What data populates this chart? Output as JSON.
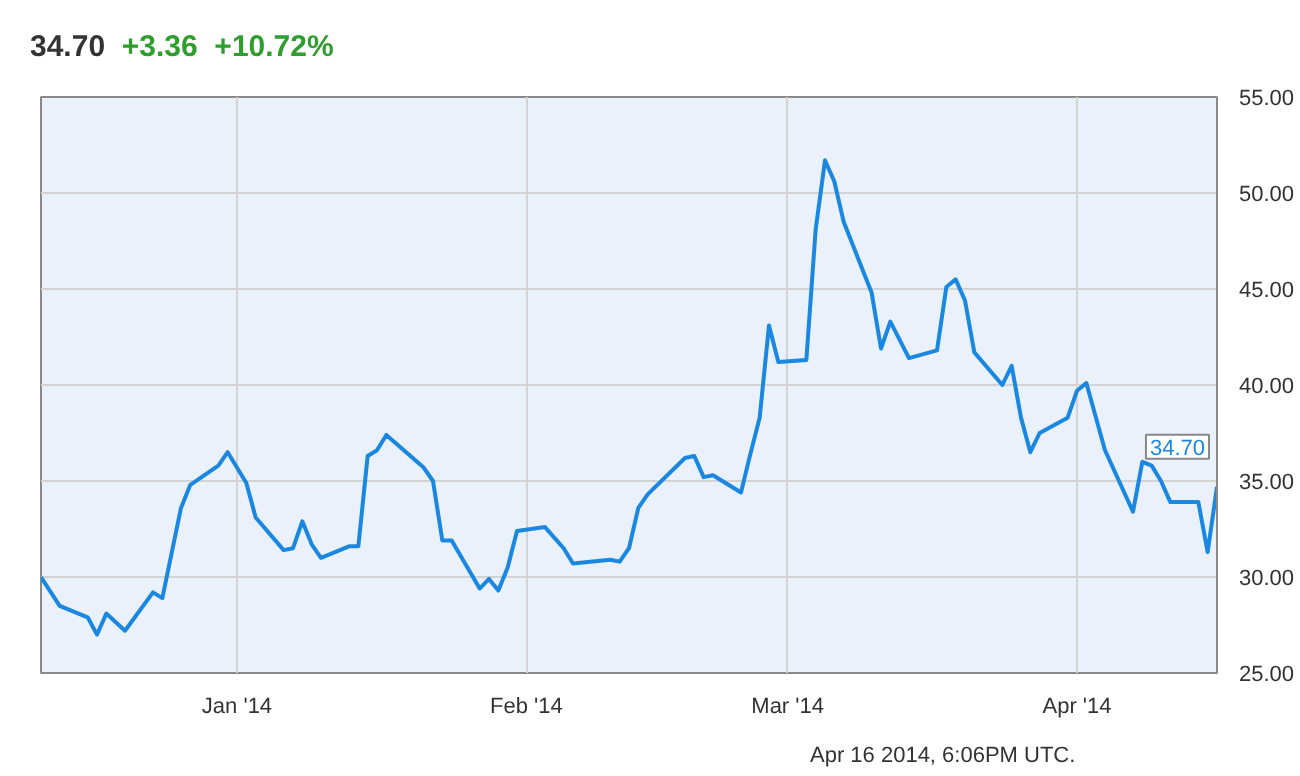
{
  "chart_data": {
    "type": "line",
    "title": "34.70",
    "subtitle": "+3.36  +10.72%",
    "x": [
      "2013-12-11",
      "2013-12-13",
      "2013-12-16",
      "2013-12-17",
      "2013-12-18",
      "2013-12-20",
      "2013-12-23",
      "2013-12-24",
      "2013-12-26",
      "2013-12-27",
      "2013-12-30",
      "2013-12-31",
      "2014-01-02",
      "2014-01-03",
      "2014-01-06",
      "2014-01-07",
      "2014-01-08",
      "2014-01-09",
      "2014-01-10",
      "2014-01-13",
      "2014-01-14",
      "2014-01-15",
      "2014-01-16",
      "2014-01-17",
      "2014-01-21",
      "2014-01-22",
      "2014-01-23",
      "2014-01-24",
      "2014-01-27",
      "2014-01-28",
      "2014-01-29",
      "2014-01-30",
      "2014-01-31",
      "2014-02-03",
      "2014-02-05",
      "2014-02-06",
      "2014-02-10",
      "2014-02-11",
      "2014-02-12",
      "2014-02-13",
      "2014-02-14",
      "2014-02-18",
      "2014-02-19",
      "2014-02-20",
      "2014-02-21",
      "2014-02-24",
      "2014-02-25",
      "2014-02-26",
      "2014-02-27",
      "2014-02-28",
      "2014-03-03",
      "2014-03-04",
      "2014-03-05",
      "2014-03-06",
      "2014-03-07",
      "2014-03-10",
      "2014-03-11",
      "2014-03-12",
      "2014-03-14",
      "2014-03-17",
      "2014-03-18",
      "2014-03-19",
      "2014-03-20",
      "2014-03-21",
      "2014-03-24",
      "2014-03-25",
      "2014-03-26",
      "2014-03-27",
      "2014-03-28",
      "2014-03-31",
      "2014-04-01",
      "2014-04-02",
      "2014-04-04",
      "2014-04-07",
      "2014-04-08",
      "2014-04-09",
      "2014-04-10",
      "2014-04-11",
      "2014-04-14",
      "2014-04-15",
      "2014-04-16"
    ],
    "series": [
      {
        "color": "#1a87e0",
        "values": [
          30.0,
          28.5,
          27.9,
          27.0,
          28.1,
          27.2,
          29.2,
          28.9,
          33.6,
          34.8,
          35.8,
          36.5,
          34.9,
          33.1,
          31.4,
          31.5,
          32.9,
          31.7,
          31.0,
          31.6,
          31.6,
          36.3,
          36.6,
          37.4,
          35.7,
          35.0,
          31.9,
          31.9,
          29.4,
          29.9,
          29.3,
          30.5,
          32.4,
          32.6,
          31.5,
          30.7,
          30.9,
          30.8,
          31.5,
          33.6,
          34.3,
          36.2,
          36.3,
          35.2,
          35.3,
          34.4,
          36.4,
          38.3,
          43.1,
          41.2,
          41.3,
          48.1,
          51.7,
          50.6,
          48.5,
          44.8,
          41.9,
          43.3,
          41.4,
          41.8,
          45.1,
          45.5,
          44.4,
          41.7,
          40.0,
          41.0,
          38.3,
          36.5,
          37.5,
          38.3,
          39.7,
          40.1,
          36.6,
          33.4,
          36.0,
          35.8,
          35.0,
          33.9,
          33.9,
          31.3,
          34.7
        ]
      }
    ],
    "xlim": [
      "2013-12-11",
      "2014-04-16"
    ],
    "xticks": [
      {
        "value": "2014-01-01",
        "label": "Jan '14"
      },
      {
        "value": "2014-02-01",
        "label": "Feb '14"
      },
      {
        "value": "2014-03-01",
        "label": "Mar '14"
      },
      {
        "value": "2014-04-01",
        "label": "Apr '14"
      }
    ],
    "ylim": [
      25,
      55
    ],
    "yticks": [
      {
        "value": 25,
        "label": "25.00"
      },
      {
        "value": 30,
        "label": "30.00"
      },
      {
        "value": 35,
        "label": "35.00"
      },
      {
        "value": 40,
        "label": "40.00"
      },
      {
        "value": 45,
        "label": "45.00"
      },
      {
        "value": 50,
        "label": "50.00"
      },
      {
        "value": 55,
        "label": "55.00"
      }
    ],
    "annotations": [
      {
        "text": "34.70",
        "x": "2014-04-16",
        "y": 34.7
      },
      "Apr 16 2014, 6:06PM UTC."
    ],
    "grid": true,
    "marker": "none",
    "line_style": "solid"
  }
}
